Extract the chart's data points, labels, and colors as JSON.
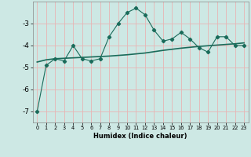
{
  "xlabel": "Humidex (Indice chaleur)",
  "ylabel": "",
  "background_color": "#cde8e4",
  "grid_color": "#e8b4b4",
  "line_color": "#1a6b5a",
  "x_data": [
    0,
    1,
    2,
    3,
    4,
    5,
    6,
    7,
    8,
    9,
    10,
    11,
    12,
    13,
    14,
    15,
    16,
    17,
    18,
    19,
    20,
    21,
    22,
    23
  ],
  "line1_y": [
    -7.0,
    -4.9,
    -4.6,
    -4.7,
    -4.0,
    -4.6,
    -4.7,
    -4.6,
    -3.6,
    -3.0,
    -2.5,
    -2.3,
    -2.6,
    -3.3,
    -3.8,
    -3.7,
    -3.4,
    -3.7,
    -4.1,
    -4.3,
    -3.6,
    -3.6,
    -4.0,
    -4.0
  ],
  "line2_y": [
    -4.75,
    -4.65,
    -4.6,
    -4.58,
    -4.56,
    -4.54,
    -4.52,
    -4.5,
    -4.48,
    -4.45,
    -4.42,
    -4.38,
    -4.34,
    -4.28,
    -4.22,
    -4.17,
    -4.12,
    -4.08,
    -4.04,
    -4.01,
    -3.98,
    -3.95,
    -3.92,
    -3.88
  ],
  "ylim": [
    -7.5,
    -2.0
  ],
  "xlim": [
    -0.5,
    23.5
  ],
  "yticks": [
    -7,
    -6,
    -5,
    -4,
    -3
  ],
  "xticks": [
    0,
    1,
    2,
    3,
    4,
    5,
    6,
    7,
    8,
    9,
    10,
    11,
    12,
    13,
    14,
    15,
    16,
    17,
    18,
    19,
    20,
    21,
    22,
    23
  ]
}
